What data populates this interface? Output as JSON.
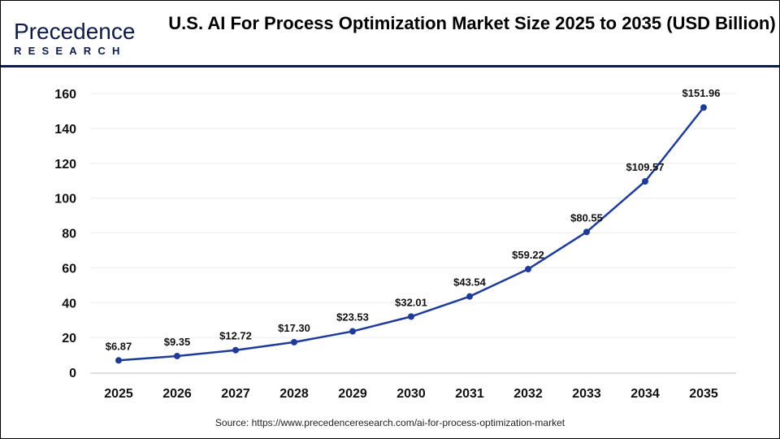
{
  "logo": {
    "line1": "Precedence",
    "line2": "RESEARCH"
  },
  "title": "U.S. AI For Process Optimization Market Size 2025 to 2035 (USD Billion)",
  "source": "Source: https://www.precedenceresearch.com/ai-for-process-optimization-market",
  "chart_data": {
    "type": "line",
    "title": "U.S. AI For Process Optimization Market Size 2025 to 2035 (USD Billion)",
    "categories": [
      "2025",
      "2026",
      "2027",
      "2028",
      "2029",
      "2030",
      "2031",
      "2032",
      "2033",
      "2034",
      "2035"
    ],
    "values": [
      6.87,
      9.35,
      12.72,
      17.3,
      23.53,
      32.01,
      43.54,
      59.22,
      80.55,
      109.57,
      151.96
    ],
    "labels": [
      "$6.87",
      "$9.35",
      "$12.72",
      "$17.30",
      "$23.53",
      "$32.01",
      "$43.54",
      "$59.22",
      "$80.55",
      "$109.57",
      "$151.96"
    ],
    "yticks": [
      0,
      20,
      40,
      60,
      80,
      100,
      120,
      140,
      160
    ],
    "ylim": [
      0,
      160
    ],
    "grid": true,
    "color": "#1f3b9a"
  }
}
